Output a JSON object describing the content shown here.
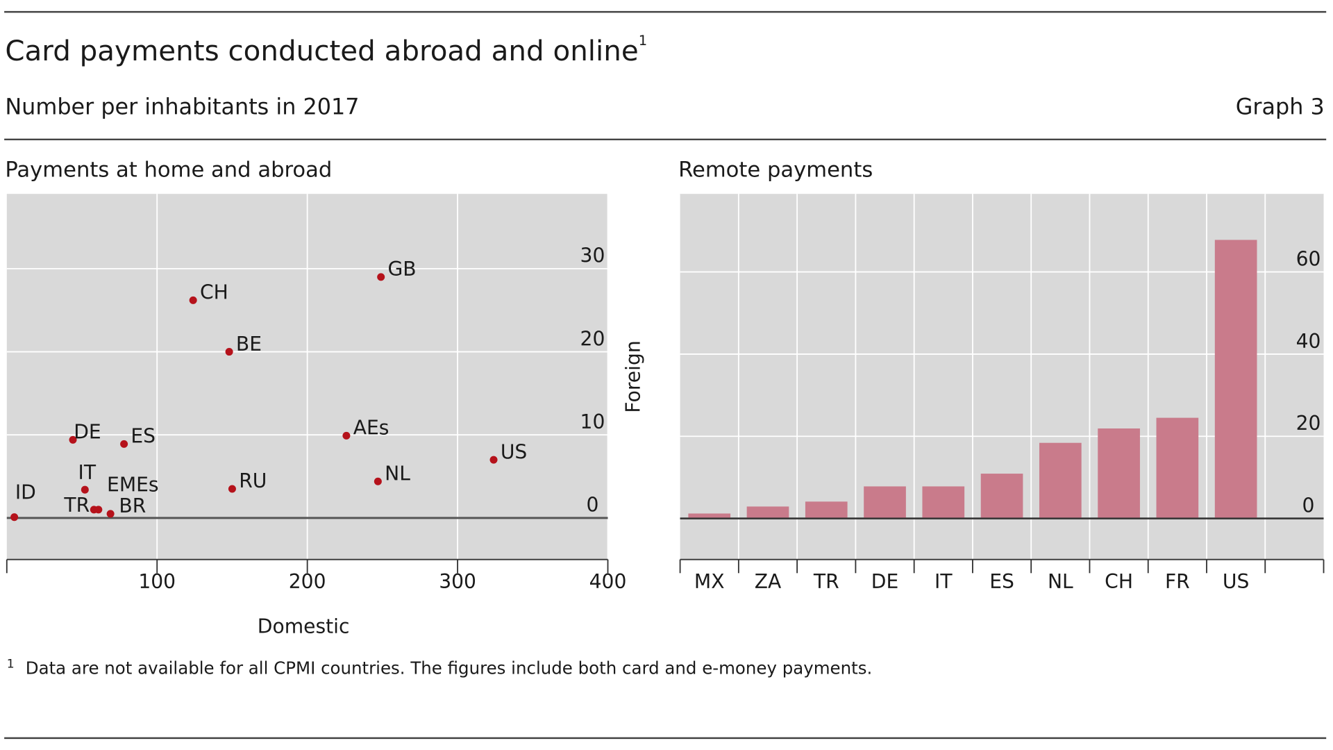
{
  "header": {
    "title": "Card payments conducted abroad and online",
    "title_note": "1",
    "subtitle": "Number per inhabitants in 2017",
    "graph_label": "Graph 3"
  },
  "chart_data": [
    {
      "type": "scatter",
      "title": "Payments at home and abroad",
      "x_label": "Domestic",
      "y_label": "Foreign",
      "labels": [
        "ID",
        "TR",
        "EMEs",
        "BR",
        "IT",
        "DE",
        "ES",
        "CH",
        "BE",
        "RU",
        "AEs",
        "GB",
        "NL",
        "US"
      ],
      "x": [
        5,
        58,
        61,
        69,
        52,
        44,
        78,
        124,
        148,
        150,
        226,
        249,
        247,
        324
      ],
      "values": [
        0.1,
        1.0,
        1.0,
        0.5,
        3.4,
        9.4,
        8.9,
        26.2,
        20.0,
        3.5,
        9.9,
        29.0,
        4.4,
        7.0
      ],
      "color": "#b5121b",
      "xlim": [
        0,
        400
      ],
      "xticks": [
        100,
        200,
        300,
        400
      ],
      "ylim": [
        -5,
        39
      ],
      "yticks": [
        0,
        10,
        20,
        30
      ],
      "grid": true
    },
    {
      "type": "bar",
      "title": "Remote payments",
      "categories": [
        "MX",
        "ZA",
        "TR",
        "DE",
        "IT",
        "ES",
        "NL",
        "CH",
        "FR",
        "US",
        null
      ],
      "values": [
        1.2,
        2.9,
        4.1,
        7.8,
        7.8,
        10.9,
        18.4,
        21.9,
        24.5,
        67.8,
        null
      ],
      "color": "#c97b8b",
      "ylim": [
        -10,
        79
      ],
      "yticks": [
        0,
        20,
        40,
        60
      ],
      "grid": true
    }
  ],
  "footnote": {
    "marker": "1",
    "text": "Data are not available for all CPMI countries. The figures include both card and e-money payments."
  }
}
